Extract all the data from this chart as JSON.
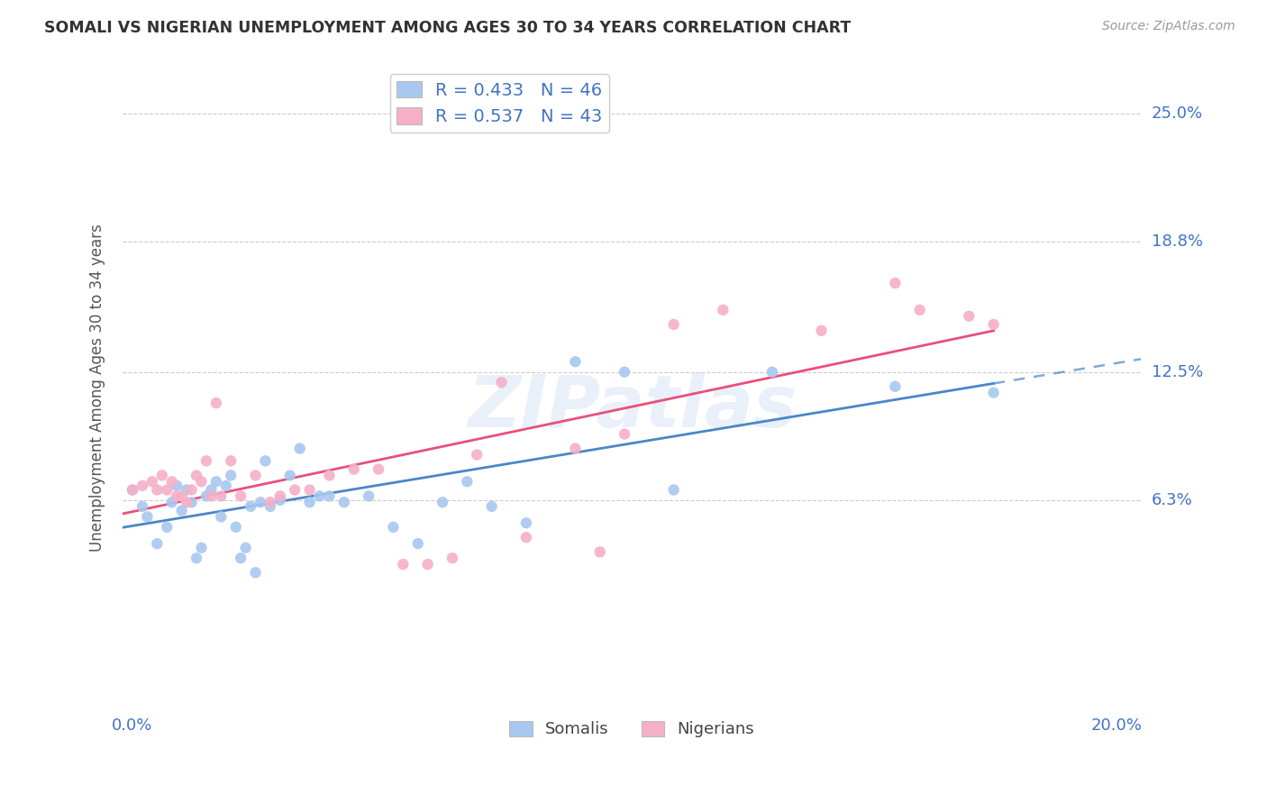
{
  "title": "SOMALI VS NIGERIAN UNEMPLOYMENT AMONG AGES 30 TO 34 YEARS CORRELATION CHART",
  "source": "Source: ZipAtlas.com",
  "ylabel": "Unemployment Among Ages 30 to 34 years",
  "xlim": [
    -0.002,
    0.205
  ],
  "ylim": [
    -0.04,
    0.275
  ],
  "yticks": [
    0.063,
    0.125,
    0.188,
    0.25
  ],
  "ytick_labels": [
    "6.3%",
    "12.5%",
    "18.8%",
    "25.0%"
  ],
  "xticks": [
    0.0,
    0.05,
    0.1,
    0.15,
    0.2
  ],
  "xtick_labels": [
    "0.0%",
    "",
    "",
    "",
    "20.0%"
  ],
  "somali_R": 0.433,
  "somali_N": 46,
  "nigerian_R": 0.537,
  "nigerian_N": 43,
  "somali_color": "#a8c8f0",
  "nigerian_color": "#f5b0c8",
  "somali_line_color": "#4a86c8",
  "nigerian_line_color": "#e8507a",
  "watermark_text": "ZIPatlas",
  "somali_x": [
    0.0,
    0.002,
    0.003,
    0.005,
    0.007,
    0.008,
    0.009,
    0.01,
    0.011,
    0.012,
    0.013,
    0.014,
    0.015,
    0.016,
    0.017,
    0.018,
    0.019,
    0.02,
    0.021,
    0.022,
    0.023,
    0.024,
    0.025,
    0.026,
    0.027,
    0.028,
    0.03,
    0.032,
    0.034,
    0.036,
    0.038,
    0.04,
    0.043,
    0.048,
    0.053,
    0.058,
    0.063,
    0.068,
    0.073,
    0.08,
    0.09,
    0.1,
    0.11,
    0.13,
    0.155,
    0.175
  ],
  "somali_y": [
    0.068,
    0.06,
    0.055,
    0.042,
    0.05,
    0.062,
    0.07,
    0.058,
    0.068,
    0.062,
    0.035,
    0.04,
    0.065,
    0.068,
    0.072,
    0.055,
    0.07,
    0.075,
    0.05,
    0.035,
    0.04,
    0.06,
    0.028,
    0.062,
    0.082,
    0.06,
    0.063,
    0.075,
    0.088,
    0.062,
    0.065,
    0.065,
    0.062,
    0.065,
    0.05,
    0.042,
    0.062,
    0.072,
    0.06,
    0.052,
    0.13,
    0.125,
    0.068,
    0.125,
    0.118,
    0.115
  ],
  "nigerian_x": [
    0.0,
    0.002,
    0.004,
    0.005,
    0.006,
    0.007,
    0.008,
    0.009,
    0.01,
    0.011,
    0.012,
    0.013,
    0.014,
    0.015,
    0.016,
    0.017,
    0.018,
    0.02,
    0.022,
    0.025,
    0.028,
    0.03,
    0.033,
    0.036,
    0.04,
    0.045,
    0.05,
    0.055,
    0.06,
    0.065,
    0.07,
    0.075,
    0.08,
    0.09,
    0.095,
    0.1,
    0.11,
    0.12,
    0.14,
    0.155,
    0.16,
    0.17,
    0.175
  ],
  "nigerian_y": [
    0.068,
    0.07,
    0.072,
    0.068,
    0.075,
    0.068,
    0.072,
    0.065,
    0.065,
    0.062,
    0.068,
    0.075,
    0.072,
    0.082,
    0.065,
    0.11,
    0.065,
    0.082,
    0.065,
    0.075,
    0.062,
    0.065,
    0.068,
    0.068,
    0.075,
    0.078,
    0.078,
    0.032,
    0.032,
    0.035,
    0.085,
    0.12,
    0.045,
    0.088,
    0.038,
    0.095,
    0.148,
    0.155,
    0.145,
    0.168,
    0.155,
    0.152,
    0.148
  ]
}
